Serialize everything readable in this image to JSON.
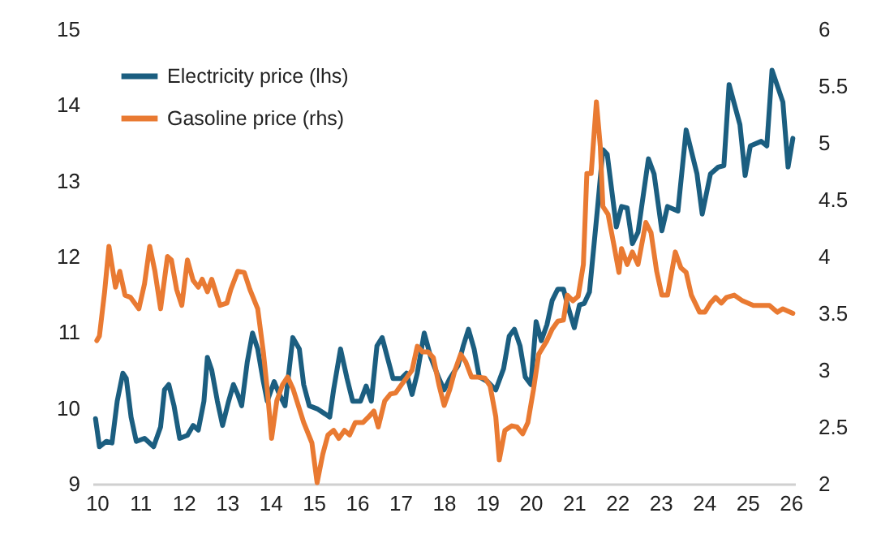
{
  "chart_data": {
    "type": "line",
    "xlim": [
      9.9,
      26.1
    ],
    "xticks": [
      10,
      11,
      12,
      13,
      14,
      15,
      16,
      17,
      18,
      19,
      20,
      21,
      22,
      23,
      24,
      25,
      26
    ],
    "ylim": [
      9,
      15
    ],
    "yticks": [
      9,
      10,
      11,
      12,
      13,
      14,
      15
    ],
    "y2lim": [
      2,
      6
    ],
    "y2ticks": [
      2,
      2.5,
      3,
      3.5,
      4,
      4.5,
      5,
      5.5,
      6
    ],
    "grid": false,
    "legend": "top left",
    "marker": "none",
    "line_style": "solid",
    "series": [
      {
        "name": "Electricity price (lhs)",
        "color": "#1b5e80",
        "x": [
          9.97,
          10.06,
          10.22,
          10.35,
          10.47,
          10.6,
          10.68,
          10.79,
          10.91,
          11.1,
          11.31,
          11.47,
          11.56,
          11.66,
          11.78,
          11.91,
          12.09,
          12.22,
          12.34,
          12.47,
          12.55,
          12.65,
          12.78,
          12.9,
          13.03,
          13.15,
          13.25,
          13.34,
          13.47,
          13.59,
          13.71,
          13.84,
          13.93,
          14.09,
          14.21,
          14.34,
          14.52,
          14.67,
          14.77,
          14.9,
          15.08,
          15.27,
          15.37,
          15.46,
          15.62,
          15.77,
          15.9,
          16.08,
          16.21,
          16.33,
          16.46,
          16.58,
          16.7,
          16.83,
          17.02,
          17.14,
          17.27,
          17.39,
          17.55,
          17.7,
          17.89,
          18.01,
          18.14,
          18.33,
          18.45,
          18.57,
          18.7,
          18.82,
          19.01,
          19.2,
          19.38,
          19.51,
          19.63,
          19.76,
          19.88,
          20.01,
          20.13,
          20.25,
          20.38,
          20.5,
          20.63,
          20.76,
          20.88,
          21.01,
          21.13,
          21.24,
          21.36,
          21.55,
          21.67,
          21.77,
          21.98,
          22.1,
          22.23,
          22.35,
          22.48,
          22.72,
          22.85,
          23.03,
          23.16,
          23.4,
          23.59,
          23.84,
          23.96,
          24.15,
          24.33,
          24.46,
          24.58,
          24.83,
          24.95,
          25.07,
          25.32,
          25.45,
          25.57,
          25.82,
          25.94,
          26.05
        ],
        "values": [
          9.86,
          9.49,
          9.56,
          9.54,
          10.09,
          10.46,
          10.39,
          9.88,
          9.56,
          9.6,
          9.49,
          9.75,
          10.24,
          10.31,
          10.03,
          9.6,
          9.64,
          9.77,
          9.71,
          10.09,
          10.67,
          10.5,
          10.09,
          9.77,
          10.07,
          10.31,
          10.18,
          10.03,
          10.61,
          10.99,
          10.78,
          10.35,
          10.09,
          10.35,
          10.18,
          10.03,
          10.93,
          10.78,
          10.31,
          10.03,
          9.99,
          9.92,
          9.88,
          10.24,
          10.78,
          10.39,
          10.09,
          10.09,
          10.29,
          10.09,
          10.82,
          10.93,
          10.67,
          10.39,
          10.39,
          10.46,
          10.18,
          10.46,
          10.99,
          10.67,
          10.39,
          10.24,
          10.39,
          10.56,
          10.82,
          11.04,
          10.78,
          10.41,
          10.35,
          10.24,
          10.52,
          10.95,
          11.04,
          10.82,
          10.41,
          10.31,
          11.14,
          10.89,
          11.1,
          11.42,
          11.57,
          11.57,
          11.31,
          11.06,
          11.36,
          11.38,
          11.53,
          12.66,
          13.41,
          13.35,
          12.39,
          12.66,
          12.64,
          12.17,
          12.32,
          13.29,
          13.09,
          12.34,
          12.66,
          12.6,
          13.67,
          13.09,
          12.56,
          13.09,
          13.18,
          13.2,
          14.27,
          13.74,
          13.07,
          13.46,
          13.52,
          13.46,
          14.46,
          14.04,
          13.18,
          13.56
        ]
      },
      {
        "name": "Gasoline price (rhs)",
        "color": "#e97a32",
        "axis": "y2",
        "x": [
          10,
          10.06,
          10.18,
          10.28,
          10.43,
          10.53,
          10.65,
          10.78,
          10.97,
          11.1,
          11.22,
          11.34,
          11.47,
          11.63,
          11.72,
          11.84,
          11.96,
          12.09,
          12.22,
          12.34,
          12.43,
          12.55,
          12.65,
          12.84,
          13,
          13.09,
          13.25,
          13.4,
          13.53,
          13.71,
          13.84,
          13.93,
          14.03,
          14.15,
          14.28,
          14.4,
          14.53,
          14.77,
          14.96,
          15.08,
          15.21,
          15.33,
          15.46,
          15.58,
          15.71,
          15.83,
          15.96,
          16.14,
          16.27,
          16.39,
          16.49,
          16.64,
          16.77,
          16.89,
          17.02,
          17.14,
          17.27,
          17.39,
          17.51,
          17.64,
          17.76,
          17.89,
          18.01,
          18.14,
          18.26,
          18.39,
          18.51,
          18.64,
          18.76,
          18.95,
          19.07,
          19.2,
          19.28,
          19.41,
          19.57,
          19.69,
          19.82,
          19.94,
          20.07,
          20.19,
          20.38,
          20.5,
          20.63,
          20.76,
          20.85,
          20.98,
          21.1,
          21.22,
          21.3,
          21.4,
          21.52,
          21.61,
          21.67,
          21.79,
          21.92,
          22.04,
          22.1,
          22.23,
          22.35,
          22.48,
          22.66,
          22.78,
          22.91,
          23.03,
          23.16,
          23.34,
          23.47,
          23.59,
          23.71,
          23.9,
          24.02,
          24.15,
          24.27,
          24.4,
          24.52,
          24.7,
          24.89,
          25.14,
          25.51,
          25.69,
          25.82,
          26.05
        ],
        "values": [
          3.26,
          3.3,
          3.69,
          4.09,
          3.73,
          3.87,
          3.66,
          3.64,
          3.54,
          3.76,
          4.09,
          3.87,
          3.54,
          4.0,
          3.97,
          3.71,
          3.57,
          3.97,
          3.79,
          3.73,
          3.8,
          3.69,
          3.8,
          3.57,
          3.59,
          3.71,
          3.87,
          3.86,
          3.71,
          3.54,
          3.16,
          2.83,
          2.4,
          2.73,
          2.87,
          2.94,
          2.83,
          2.54,
          2.36,
          2.01,
          2.26,
          2.43,
          2.47,
          2.4,
          2.47,
          2.43,
          2.54,
          2.54,
          2.59,
          2.64,
          2.5,
          2.73,
          2.79,
          2.8,
          2.87,
          2.93,
          3.0,
          3.21,
          3.16,
          3.16,
          3.11,
          2.87,
          2.69,
          2.83,
          3.0,
          3.14,
          3.07,
          2.94,
          2.94,
          2.93,
          2.86,
          2.59,
          2.21,
          2.47,
          2.51,
          2.5,
          2.44,
          2.54,
          2.83,
          3.14,
          3.26,
          3.36,
          3.43,
          3.44,
          3.66,
          3.61,
          3.65,
          3.93,
          4.73,
          4.73,
          5.36,
          4.97,
          4.44,
          4.37,
          4.11,
          3.86,
          4.07,
          3.93,
          4.04,
          3.93,
          4.3,
          4.21,
          3.87,
          3.66,
          3.66,
          4.04,
          3.9,
          3.86,
          3.66,
          3.51,
          3.51,
          3.59,
          3.64,
          3.59,
          3.64,
          3.66,
          3.61,
          3.57,
          3.57,
          3.51,
          3.54,
          3.5
        ]
      }
    ]
  }
}
